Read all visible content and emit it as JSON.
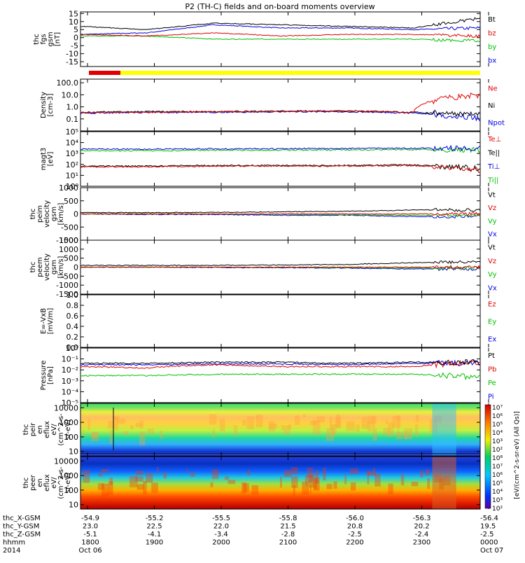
{
  "title": "P2 (TH-C) fields and on-board moments overview",
  "panels": [
    {
      "id": "fgs",
      "ylabel": [
        "thc",
        "fgs",
        "gsm",
        "[nT]"
      ],
      "ylim": [
        -18,
        16
      ],
      "ticks": [
        "15",
        "10",
        "5",
        "0",
        "-5",
        "-10",
        "-15"
      ],
      "tick_values": [
        15,
        10,
        5,
        0,
        -5,
        -10,
        -15
      ],
      "scale": "linear",
      "legend": [
        {
          "label": "Bt",
          "color": "#000000"
        },
        {
          "label": "bz",
          "color": "#e00000"
        },
        {
          "label": "by",
          "color": "#00c000"
        },
        {
          "label": "bx",
          "color": "#0000e0"
        }
      ]
    },
    {
      "id": "density",
      "ylabel": [
        "Density",
        "[cm-3]"
      ],
      "ylim": [
        0.01,
        200
      ],
      "ticks": [
        "100.0",
        "10.0",
        "1.0",
        "0.1"
      ],
      "tick_values": [
        100,
        10,
        1,
        0.1
      ],
      "scale": "log",
      "legend": [
        {
          "label": "Ne",
          "color": "#e00000"
        },
        {
          "label": "Ni",
          "color": "#000000"
        },
        {
          "label": "Npot",
          "color": "#0000e0"
        }
      ]
    },
    {
      "id": "temp",
      "ylabel": [
        "magt3",
        "[eV]"
      ],
      "ylim": [
        1,
        100000
      ],
      "ticks": [
        "10⁵",
        "10⁴",
        "10³",
        "10²",
        "10¹",
        "10⁰"
      ],
      "tick_values": [
        100000,
        10000,
        1000,
        100,
        10,
        1
      ],
      "scale": "log",
      "legend": [
        {
          "label": "Te⊥",
          "color": "#e00000"
        },
        {
          "label": "Te||",
          "color": "#000000"
        },
        {
          "label": "Ti⊥",
          "color": "#0000e0"
        },
        {
          "label": "Ti||",
          "color": "#00c000"
        }
      ]
    },
    {
      "id": "peim",
      "ylabel": [
        "thc",
        "peim",
        "velocity",
        "gsm",
        "[km/s]"
      ],
      "ylim": [
        -1000,
        1000
      ],
      "ticks": [
        "1000",
        "500",
        "0",
        "-500",
        "-1000"
      ],
      "tick_values": [
        1000,
        500,
        0,
        -500,
        -1000
      ],
      "scale": "linear",
      "legend": [
        {
          "label": "Vt",
          "color": "#000000"
        },
        {
          "label": "Vz",
          "color": "#e00000"
        },
        {
          "label": "Vy",
          "color": "#00c000"
        },
        {
          "label": "Vx",
          "color": "#0000e0"
        }
      ]
    },
    {
      "id": "peem",
      "ylabel": [
        "thc",
        "peem",
        "velocity",
        "gsm",
        "[km/s]"
      ],
      "ylim": [
        -1500,
        1500
      ],
      "ticks": [
        "1500",
        "1000",
        "500",
        "0",
        "-500",
        "-1000",
        "-1500"
      ],
      "tick_values": [
        1500,
        1000,
        500,
        0,
        -500,
        -1000,
        -1500
      ],
      "scale": "linear",
      "legend": [
        {
          "label": "Vt",
          "color": "#000000"
        },
        {
          "label": "Vz",
          "color": "#e00000"
        },
        {
          "label": "Vy",
          "color": "#00c000"
        },
        {
          "label": "Vx",
          "color": "#0000e0"
        }
      ]
    },
    {
      "id": "efield",
      "ylabel": [
        "E=-VxB",
        "[mV/m]"
      ],
      "ylim": [
        0,
        1
      ],
      "ticks": [
        "1.0",
        "0.8",
        "0.6",
        "0.4",
        "0.2",
        "0.0"
      ],
      "tick_values": [
        1.0,
        0.8,
        0.6,
        0.4,
        0.2,
        0.0
      ],
      "scale": "linear",
      "legend": [
        {
          "label": "Ez",
          "color": "#e00000"
        },
        {
          "label": "Ey",
          "color": "#00c000"
        },
        {
          "label": "Ex",
          "color": "#0000e0"
        }
      ]
    },
    {
      "id": "pressure",
      "ylabel": [
        "Pressure",
        "[nPa]"
      ],
      "ylim": [
        1e-05,
        1
      ],
      "ticks": [
        "10⁰",
        "10⁻¹",
        "10⁻²",
        "10⁻³",
        "10⁻⁴",
        "10⁻⁵"
      ],
      "tick_values": [
        1,
        0.1,
        0.01,
        0.001,
        0.0001,
        1e-05
      ],
      "scale": "log",
      "legend": [
        {
          "label": "Pt",
          "color": "#000000"
        },
        {
          "label": "Pb",
          "color": "#e00000"
        },
        {
          "label": "Pe",
          "color": "#00c000"
        },
        {
          "label": "Pi",
          "color": "#0000e0"
        }
      ]
    },
    {
      "id": "peir",
      "ylabel": [
        "thc",
        "peir",
        "en",
        "eflux",
        "eV/",
        "(cm^2-s-",
        "sr-eV)"
      ],
      "ylim": [
        5,
        20000
      ],
      "ticks": [
        "10000",
        "1000",
        "100",
        "10"
      ],
      "tick_values": [
        10000,
        1000,
        100,
        10
      ],
      "scale": "log"
    },
    {
      "id": "peer",
      "ylabel": [
        "thc",
        "peer",
        "en",
        "eflux",
        "eV/",
        "(cm^2-s-",
        "sr-eV)"
      ],
      "ylim": [
        5,
        20000
      ],
      "ticks": [
        "10000",
        "1000",
        "100",
        "10"
      ],
      "tick_values": [
        10000,
        1000,
        100,
        10
      ],
      "scale": "log"
    }
  ],
  "colorbar": {
    "ticks": [
      "10⁷",
      "10⁶",
      "10⁵",
      "10⁴",
      "10³",
      "10²",
      "10⁸",
      "10⁷",
      "10⁶",
      "10⁵",
      "10⁴",
      "10³",
      "10²"
    ],
    "label": "[eV/(cm^2-s-sr-eV) (All Qs)]"
  },
  "chart_data": {
    "type": "line",
    "title": "P2 (TH-C) fields and on-board moments overview",
    "x": [
      "1800",
      "1900",
      "2000",
      "2100",
      "2200",
      "2300",
      "0000"
    ],
    "xlabel_rows": [
      {
        "label": "thc_X-GSM",
        "values": [
          "-54.9",
          "-55.2",
          "-55.5",
          "-55.8",
          "-56.0",
          "-56.3",
          "-56.4"
        ]
      },
      {
        "label": "thc_Y-GSM",
        "values": [
          "23.0",
          "22.5",
          "22.0",
          "21.5",
          "20.8",
          "20.2",
          "19.5"
        ]
      },
      {
        "label": "thc_Z-GSM",
        "values": [
          "-5.1",
          "-4.1",
          "-3.4",
          "-2.8",
          "-2.5",
          "-2.4",
          "-2.5"
        ]
      },
      {
        "label": "hhmm",
        "values": [
          "1800",
          "1900",
          "2000",
          "2100",
          "2200",
          "2300",
          "0000"
        ]
      },
      {
        "label": "2014",
        "values": [
          "Oct 06",
          "",
          "",
          "",
          "",
          "",
          "Oct 07"
        ]
      }
    ],
    "series": [
      {
        "panel": "fgs",
        "name": "Bt",
        "values": [
          7,
          5,
          9,
          8,
          7,
          6,
          12
        ]
      },
      {
        "panel": "fgs",
        "name": "bz",
        "values": [
          2,
          1,
          3,
          1,
          2,
          2,
          1
        ]
      },
      {
        "panel": "fgs",
        "name": "by",
        "values": [
          1,
          1,
          -1,
          -1,
          -1,
          -1,
          -2
        ]
      },
      {
        "panel": "fgs",
        "name": "bx",
        "values": [
          2,
          3,
          8,
          6,
          6,
          5,
          6
        ]
      },
      {
        "panel": "density",
        "name": "Ne",
        "values": [
          0.35,
          0.35,
          0.4,
          0.4,
          0.45,
          0.35,
          10
        ]
      },
      {
        "panel": "density",
        "name": "Ni",
        "values": [
          0.35,
          0.4,
          0.4,
          0.45,
          0.45,
          0.35,
          0.2
        ]
      },
      {
        "panel": "density",
        "name": "Npot",
        "values": [
          0.3,
          0.35,
          0.35,
          0.4,
          0.4,
          0.3,
          0.1
        ]
      },
      {
        "panel": "temp",
        "name": "Te⊥",
        "values": [
          60,
          60,
          70,
          70,
          70,
          80,
          30
        ]
      },
      {
        "panel": "temp",
        "name": "Te||",
        "values": [
          70,
          70,
          80,
          80,
          80,
          90,
          40
        ]
      },
      {
        "panel": "temp",
        "name": "Ti⊥",
        "values": [
          2500,
          2500,
          2700,
          2700,
          2900,
          3000,
          3000
        ]
      },
      {
        "panel": "temp",
        "name": "Ti||",
        "values": [
          1800,
          1800,
          2000,
          2000,
          2100,
          2300,
          2000
        ]
      },
      {
        "panel": "peim",
        "name": "Vt",
        "values": [
          50,
          50,
          60,
          80,
          100,
          150,
          150
        ]
      },
      {
        "panel": "peim",
        "name": "Vz",
        "values": [
          0,
          0,
          0,
          0,
          0,
          0,
          0
        ]
      },
      {
        "panel": "peim",
        "name": "Vy",
        "values": [
          0,
          0,
          0,
          -20,
          -30,
          -50,
          -50
        ]
      },
      {
        "panel": "peim",
        "name": "Vx",
        "values": [
          0,
          -20,
          -20,
          -50,
          -50,
          -100,
          -100
        ]
      },
      {
        "panel": "peem",
        "name": "Vt",
        "values": [
          100,
          100,
          100,
          120,
          150,
          250,
          300
        ]
      },
      {
        "panel": "peem",
        "name": "Vz",
        "values": [
          0,
          0,
          0,
          0,
          0,
          0,
          0
        ]
      },
      {
        "panel": "peem",
        "name": "Vy",
        "values": [
          0,
          0,
          0,
          -20,
          -20,
          -50,
          -50
        ]
      },
      {
        "panel": "peem",
        "name": "Vx",
        "values": [
          0,
          0,
          -20,
          -30,
          -50,
          -100,
          -100
        ]
      },
      {
        "panel": "pressure",
        "name": "Pt",
        "values": [
          0.04,
          0.04,
          0.05,
          0.05,
          0.04,
          0.05,
          0.05
        ]
      },
      {
        "panel": "pressure",
        "name": "Pb",
        "values": [
          0.02,
          0.015,
          0.03,
          0.02,
          0.02,
          0.02,
          0.05
        ]
      },
      {
        "panel": "pressure",
        "name": "Pe",
        "values": [
          0.003,
          0.003,
          0.004,
          0.004,
          0.004,
          0.004,
          0.002
        ]
      },
      {
        "panel": "pressure",
        "name": "Pi",
        "values": [
          0.03,
          0.03,
          0.035,
          0.035,
          0.03,
          0.04,
          0.04
        ]
      }
    ]
  }
}
